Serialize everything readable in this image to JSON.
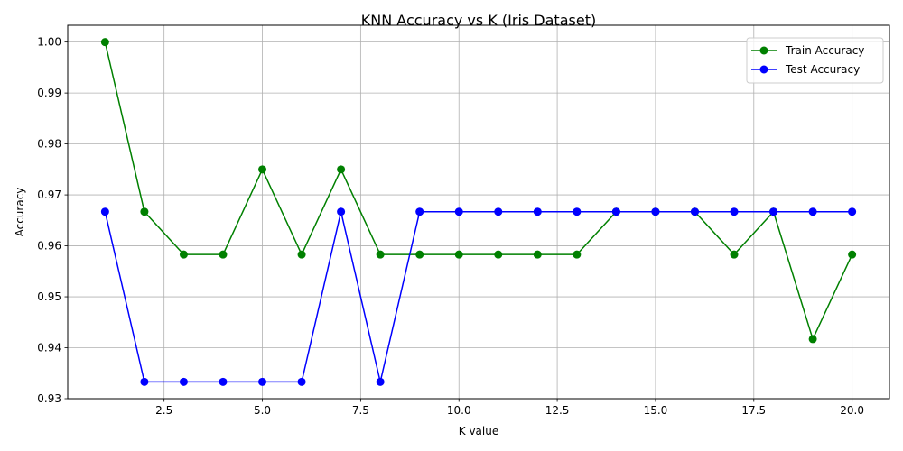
{
  "chart_data": {
    "type": "line",
    "title": "KNN Accuracy vs K (Iris Dataset)",
    "xlabel": "K value",
    "ylabel": "Accuracy",
    "x": [
      1,
      2,
      3,
      4,
      5,
      6,
      7,
      8,
      9,
      10,
      11,
      12,
      13,
      14,
      15,
      16,
      17,
      18,
      19,
      20
    ],
    "xlim": [
      0.05,
      20.95
    ],
    "ylim": [
      0.93,
      1.0033
    ],
    "xticks": [
      2.5,
      5.0,
      7.5,
      10.0,
      12.5,
      15.0,
      17.5,
      20.0
    ],
    "xtick_labels": [
      "2.5",
      "5.0",
      "7.5",
      "10.0",
      "12.5",
      "15.0",
      "17.5",
      "20.0"
    ],
    "yticks": [
      0.93,
      0.94,
      0.95,
      0.96,
      0.97,
      0.98,
      0.99,
      1.0
    ],
    "ytick_labels": [
      "0.93",
      "0.94",
      "0.95",
      "0.96",
      "0.97",
      "0.98",
      "0.99",
      "1.00"
    ],
    "grid": true,
    "legend_position": "top-right",
    "series": [
      {
        "name": "Train Accuracy",
        "color": "#008000",
        "marker": "circle",
        "values": [
          1.0,
          0.9667,
          0.9583,
          0.9583,
          0.975,
          0.9583,
          0.975,
          0.9583,
          0.9583,
          0.9583,
          0.9583,
          0.9583,
          0.9583,
          0.9667,
          0.9667,
          0.9667,
          0.9583,
          0.9667,
          0.9417,
          0.9583
        ]
      },
      {
        "name": "Test Accuracy",
        "color": "#0000ff",
        "marker": "circle",
        "values": [
          0.9667,
          0.9333,
          0.9333,
          0.9333,
          0.9333,
          0.9333,
          0.9667,
          0.9333,
          0.9667,
          0.9667,
          0.9667,
          0.9667,
          0.9667,
          0.9667,
          0.9667,
          0.9667,
          0.9667,
          0.9667,
          0.9667,
          0.9667
        ]
      }
    ]
  }
}
